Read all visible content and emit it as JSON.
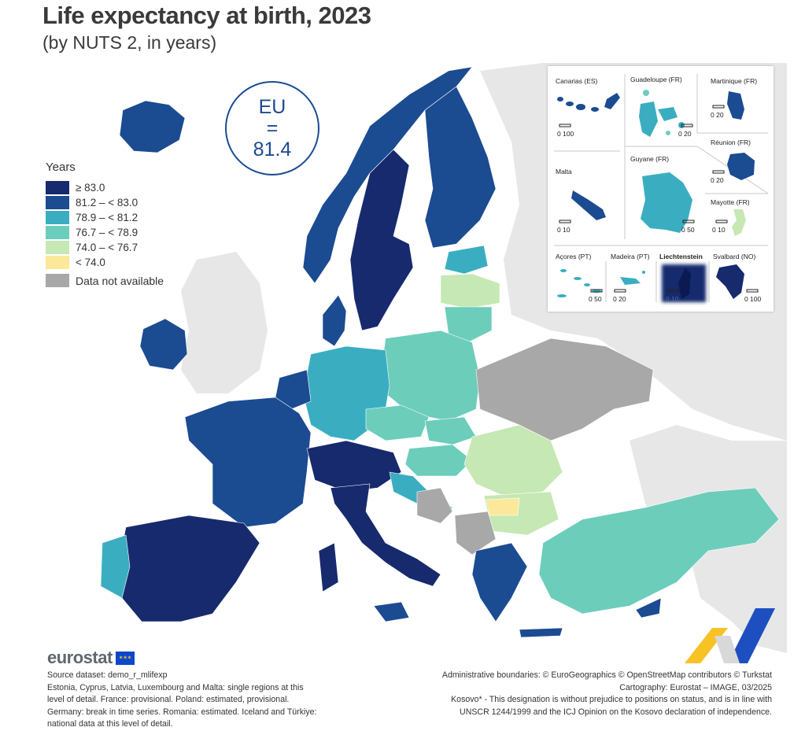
{
  "title": "Life expectancy at birth, 2023",
  "subtitle": "(by NUTS 2, in years)",
  "eu_badge": {
    "label": "EU",
    "equals": "=",
    "value": "81.4"
  },
  "legend": {
    "title": "Years",
    "classes": [
      {
        "label": "≥ 83.0",
        "color": "#172a6e"
      },
      {
        "label": "81.2 – < 83.0",
        "color": "#1b4b91"
      },
      {
        "label": "78.9 – < 81.2",
        "color": "#3aaec0"
      },
      {
        "label": "76.7 – < 78.9",
        "color": "#6ccdbb"
      },
      {
        "label": "74.0 – < 76.7",
        "color": "#c6e8b4"
      },
      {
        "label": "< 74.0",
        "color": "#fbe89a"
      }
    ],
    "not_available": {
      "label": "Data not available",
      "color": "#a8a8a8"
    }
  },
  "insets": {
    "canarias": {
      "label": "Canarias (ES)",
      "scale": "0  100"
    },
    "guadeloupe": {
      "label": "Guadeloupe (FR)",
      "scale": "0  20"
    },
    "martinique": {
      "label": "Martinique (FR)",
      "scale": "0  20"
    },
    "reunion": {
      "label": "Réunion (FR)",
      "scale": "0  20"
    },
    "malta": {
      "label": "Malta",
      "scale": "0  10"
    },
    "guyane": {
      "label": "Guyane (FR)",
      "scale": "0 50"
    },
    "mayotte": {
      "label": "Mayotte (FR)",
      "scale": "0 10"
    },
    "acores": {
      "label": "Açores (PT)",
      "scale": "0  50"
    },
    "madeira": {
      "label": "Madeira (PT)",
      "scale": "0 20"
    },
    "liechtenstein": {
      "label": "Liechtenstein",
      "scale": "0  10"
    },
    "svalbard": {
      "label": "Svalbard (NO)",
      "scale": "0 100"
    }
  },
  "footer": {
    "logo": "eurostat",
    "notes_left": [
      "Source dataset: demo_r_mlifexp",
      "Estonia, Cyprus, Latvia, Luxembourg and Malta: single regions at this",
      "level of detail. France: provisional. Poland: estimated, provisional.",
      "Germany: break in time series. Romania: estimated. Iceland and Türkiye:",
      "national data at this level of detail."
    ],
    "notes_right": [
      "Administrative boundaries: © EuroGeographics © OpenStreetMap contributors © Turkstat",
      "Cartography: Eurostat – IMAGE, 03/2025",
      "Kosovo* - This designation is without prejudice to positions on status, and is in line with",
      "UNSCR 1244/1999 and the ICJ Opinion on the Kosovo declaration of independence."
    ]
  }
}
